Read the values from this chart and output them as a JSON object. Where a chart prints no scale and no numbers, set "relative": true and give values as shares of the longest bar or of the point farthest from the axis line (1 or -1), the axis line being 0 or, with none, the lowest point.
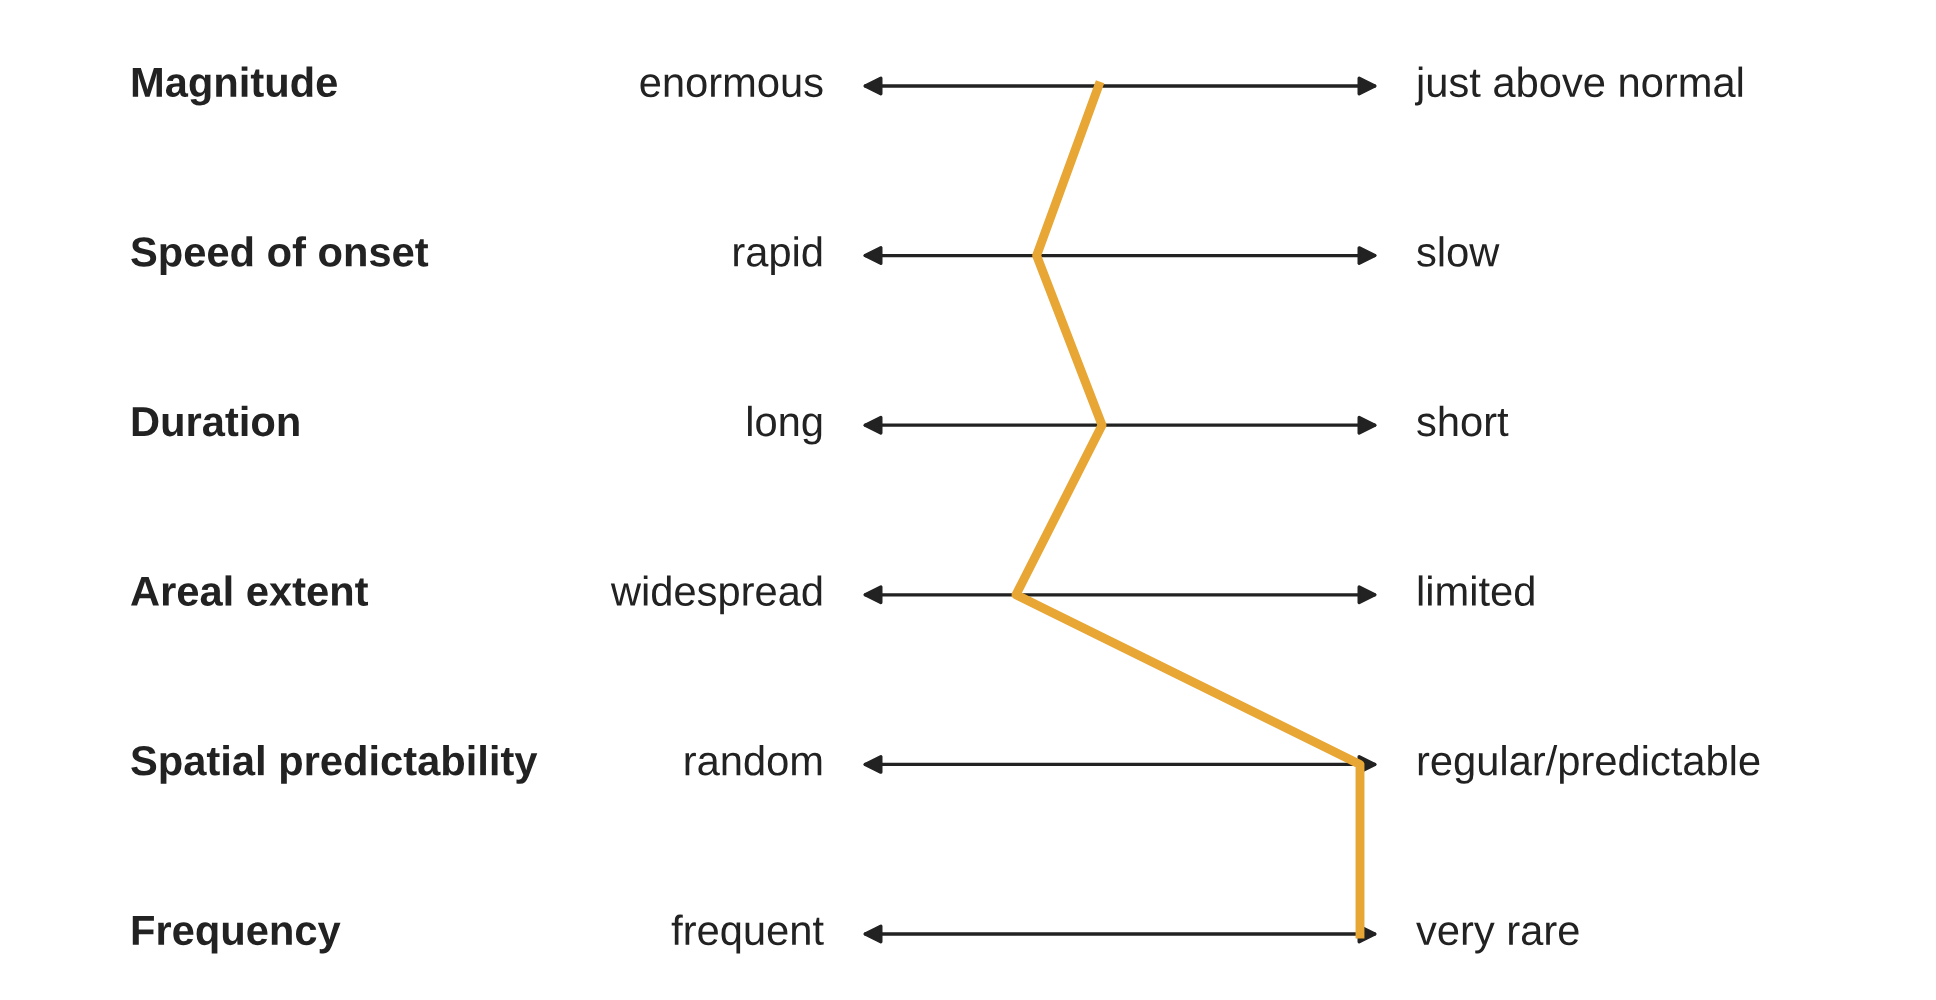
{
  "chart_data": {
    "type": "line",
    "orientation": "horizontal",
    "relative": true,
    "categories": [
      "Magnitude",
      "Speed of onset",
      "Duration",
      "Areal extent",
      "Spatial predictability",
      "Frequency"
    ],
    "series": [
      {
        "color": "#e8a634",
        "values": [
          0.24,
          0.06,
          0.25,
          0,
          1,
          1
        ]
      }
    ],
    "annotations": [
      "enormous",
      "just above normal",
      "rapid",
      "slow",
      "long",
      "short",
      "widespread",
      "limited",
      "random",
      "regular/predictable",
      "frequent",
      "very rare"
    ],
    "marker": "none",
    "line_style": "solid"
  }
}
